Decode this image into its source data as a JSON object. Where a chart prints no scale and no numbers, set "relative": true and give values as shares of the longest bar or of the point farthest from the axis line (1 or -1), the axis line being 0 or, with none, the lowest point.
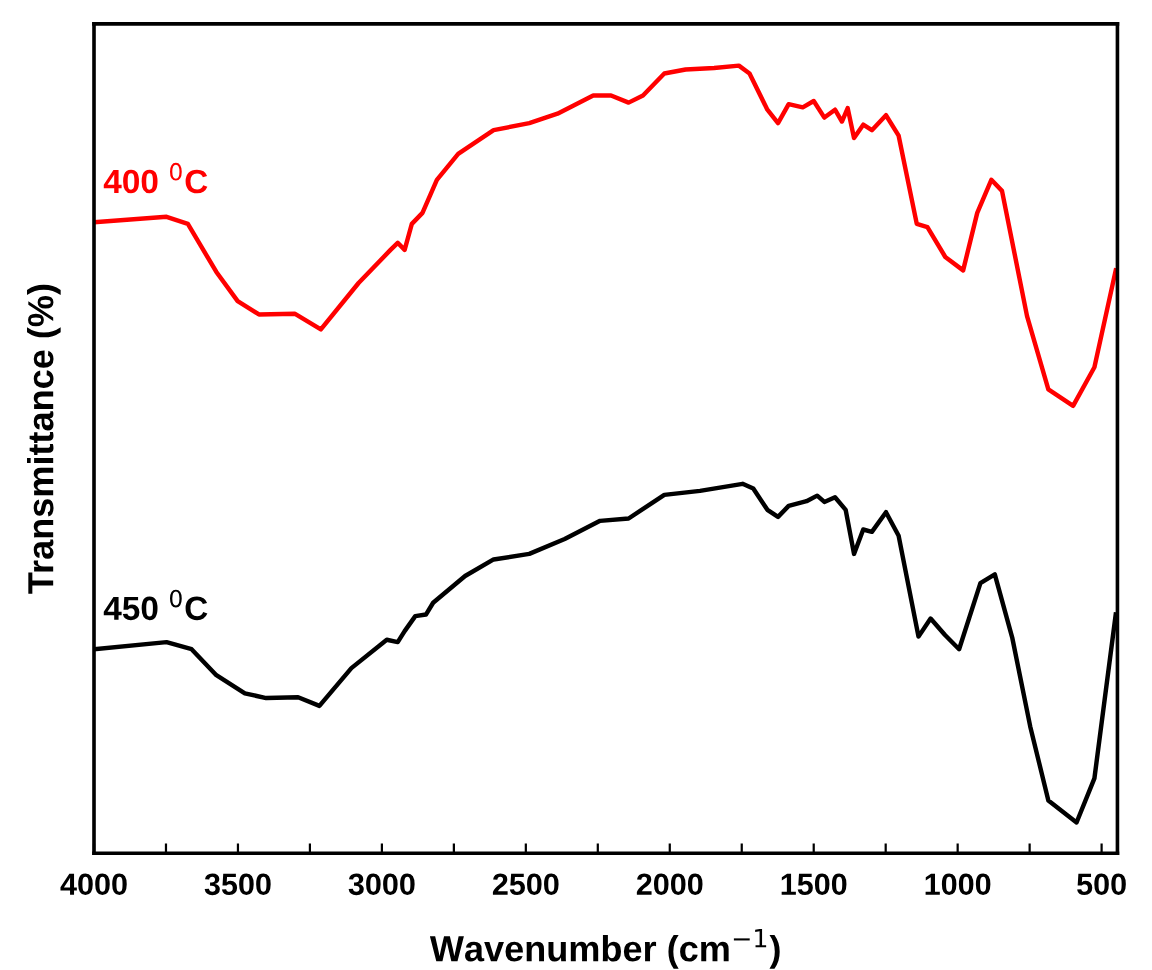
{
  "chart_data": {
    "type": "line",
    "relative": true,
    "xlabel": "Wavenumber (cm$^{−1}$)",
    "ylabel": "Transmittance (%)",
    "xlim": [
      4000,
      445
    ],
    "xticks": [
      4000,
      {
        "value": 3750,
        "label": null
      },
      3500,
      {
        "value": 3250,
        "label": null
      },
      3000,
      {
        "value": 2750,
        "label": null
      },
      2500,
      {
        "value": 2250,
        "label": null
      },
      2000,
      {
        "value": 1750,
        "label": null
      },
      1500,
      {
        "value": 1250,
        "label": null
      },
      1000,
      {
        "value": 750,
        "label": null
      },
      500
    ],
    "grid": false,
    "legend": false,
    "marker": "none",
    "line_style": "solid",
    "series": [
      {
        "name": "400 $^{0}$C",
        "color": "#ff0000",
        "x": [
          4000,
          3748,
          3674,
          3575,
          3501,
          3427,
          3303,
          3212,
          3081,
          2970,
          2945,
          2921,
          2896,
          2859,
          2809,
          2735,
          2612,
          2488,
          2390,
          2266,
          2204,
          2143,
          2093,
          2019,
          1945,
          1846,
          1760,
          1723,
          1661,
          1624,
          1587,
          1538,
          1500,
          1463,
          1426,
          1402,
          1382,
          1360,
          1328,
          1298,
          1249,
          1205,
          1142,
          1105,
          1043,
          981,
          932,
          883,
          846,
          759,
          685,
          599,
          525,
          451
        ],
        "values": [
          0.801,
          0.808,
          0.799,
          0.738,
          0.701,
          0.684,
          0.685,
          0.665,
          0.724,
          0.766,
          0.775,
          0.766,
          0.799,
          0.813,
          0.855,
          0.888,
          0.918,
          0.927,
          0.939,
          0.962,
          0.962,
          0.953,
          0.962,
          0.99,
          0.995,
          0.997,
          1.0,
          0.99,
          0.944,
          0.927,
          0.951,
          0.947,
          0.955,
          0.934,
          0.944,
          0.929,
          0.946,
          0.908,
          0.925,
          0.918,
          0.937,
          0.911,
          0.799,
          0.795,
          0.757,
          0.74,
          0.813,
          0.855,
          0.841,
          0.682,
          0.589,
          0.568,
          0.617,
          0.74
        ]
      },
      {
        "name": "450 $^{0}$C",
        "color": "#000000",
        "x": [
          4000,
          3748,
          3661,
          3575,
          3476,
          3402,
          3291,
          3217,
          3106,
          2983,
          2945,
          2921,
          2884,
          2847,
          2822,
          2711,
          2612,
          2488,
          2365,
          2242,
          2143,
          2019,
          1895,
          1747,
          1710,
          1661,
          1624,
          1587,
          1525,
          1488,
          1463,
          1426,
          1389,
          1360,
          1328,
          1298,
          1249,
          1205,
          1136,
          1094,
          1044,
          995,
          921,
          871,
          810,
          748,
          685,
          587,
          525,
          451
        ],
        "values": [
          0.259,
          0.268,
          0.259,
          0.226,
          0.203,
          0.197,
          0.198,
          0.187,
          0.235,
          0.271,
          0.268,
          0.282,
          0.301,
          0.303,
          0.318,
          0.352,
          0.373,
          0.38,
          0.399,
          0.422,
          0.425,
          0.455,
          0.46,
          0.469,
          0.463,
          0.436,
          0.427,
          0.441,
          0.447,
          0.454,
          0.446,
          0.452,
          0.436,
          0.38,
          0.411,
          0.408,
          0.433,
          0.403,
          0.275,
          0.298,
          0.277,
          0.259,
          0.343,
          0.354,
          0.273,
          0.161,
          0.067,
          0.039,
          0.095,
          0.303
        ]
      }
    ]
  }
}
